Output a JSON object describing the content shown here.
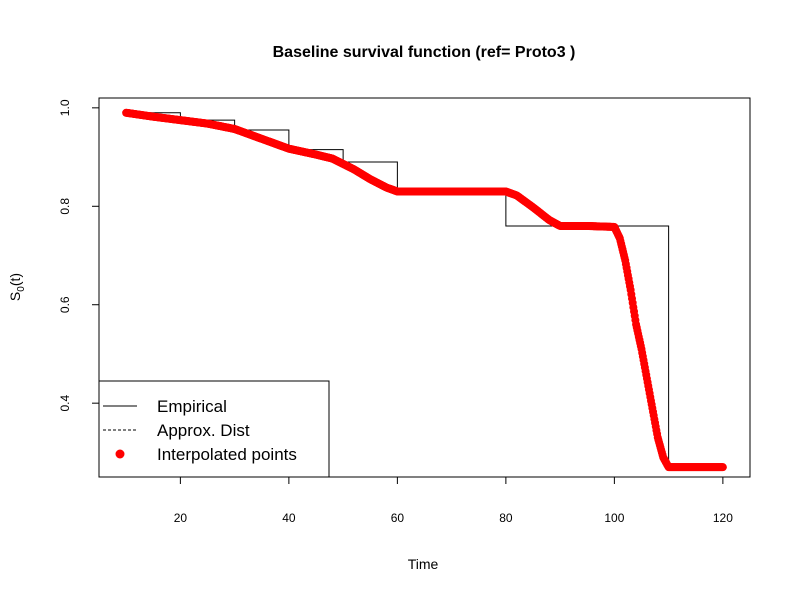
{
  "chart_data": {
    "type": "line",
    "title": "Baseline survival function (ref= Proto3 )",
    "xlabel": "Time",
    "ylabel": {
      "main": "S",
      "sub": "0",
      "suffix": "(t)"
    },
    "xlim": [
      5,
      125
    ],
    "ylim": [
      0.25,
      1.02
    ],
    "x_ticks": [
      20,
      40,
      60,
      80,
      100,
      120
    ],
    "y_ticks": [
      0.4,
      0.6,
      0.8,
      1.0
    ],
    "x_tick_labels": [
      "20",
      "40",
      "60",
      "80",
      "100",
      "120"
    ],
    "y_tick_labels": [
      "0.4",
      "0.6",
      "0.8",
      "1.0"
    ],
    "grid": false,
    "legend_position": "bottom-left",
    "legend": [
      {
        "label": "Empirical",
        "style": "solid"
      },
      {
        "label": "Approx. Dist",
        "style": "dashed"
      },
      {
        "label": "Interpolated points",
        "style": "point"
      }
    ],
    "series": [
      {
        "name": "Empirical",
        "style": "step",
        "color": "#000000",
        "x": [
          10,
          20,
          30,
          40,
          50,
          60,
          80,
          90,
          110,
          120
        ],
        "y": [
          0.99,
          0.975,
          0.955,
          0.915,
          0.89,
          0.83,
          0.76,
          0.76,
          0.27,
          0.27
        ]
      },
      {
        "name": "Interpolated points",
        "style": "points",
        "color": "#ff0000",
        "x": [
          10,
          15,
          20,
          25,
          30,
          35,
          40,
          45,
          48,
          52,
          55,
          58,
          60,
          65,
          70,
          75,
          80,
          82,
          85,
          88,
          90,
          95,
          100,
          101,
          102,
          103,
          104,
          105,
          106,
          107,
          108,
          109,
          110,
          112,
          115,
          118,
          120
        ],
        "y": [
          0.99,
          0.982,
          0.975,
          0.968,
          0.957,
          0.937,
          0.917,
          0.905,
          0.897,
          0.875,
          0.855,
          0.838,
          0.83,
          0.83,
          0.83,
          0.83,
          0.83,
          0.822,
          0.798,
          0.772,
          0.76,
          0.76,
          0.758,
          0.735,
          0.69,
          0.63,
          0.56,
          0.51,
          0.45,
          0.39,
          0.33,
          0.29,
          0.27,
          0.27,
          0.27,
          0.27,
          0.27
        ]
      }
    ]
  }
}
